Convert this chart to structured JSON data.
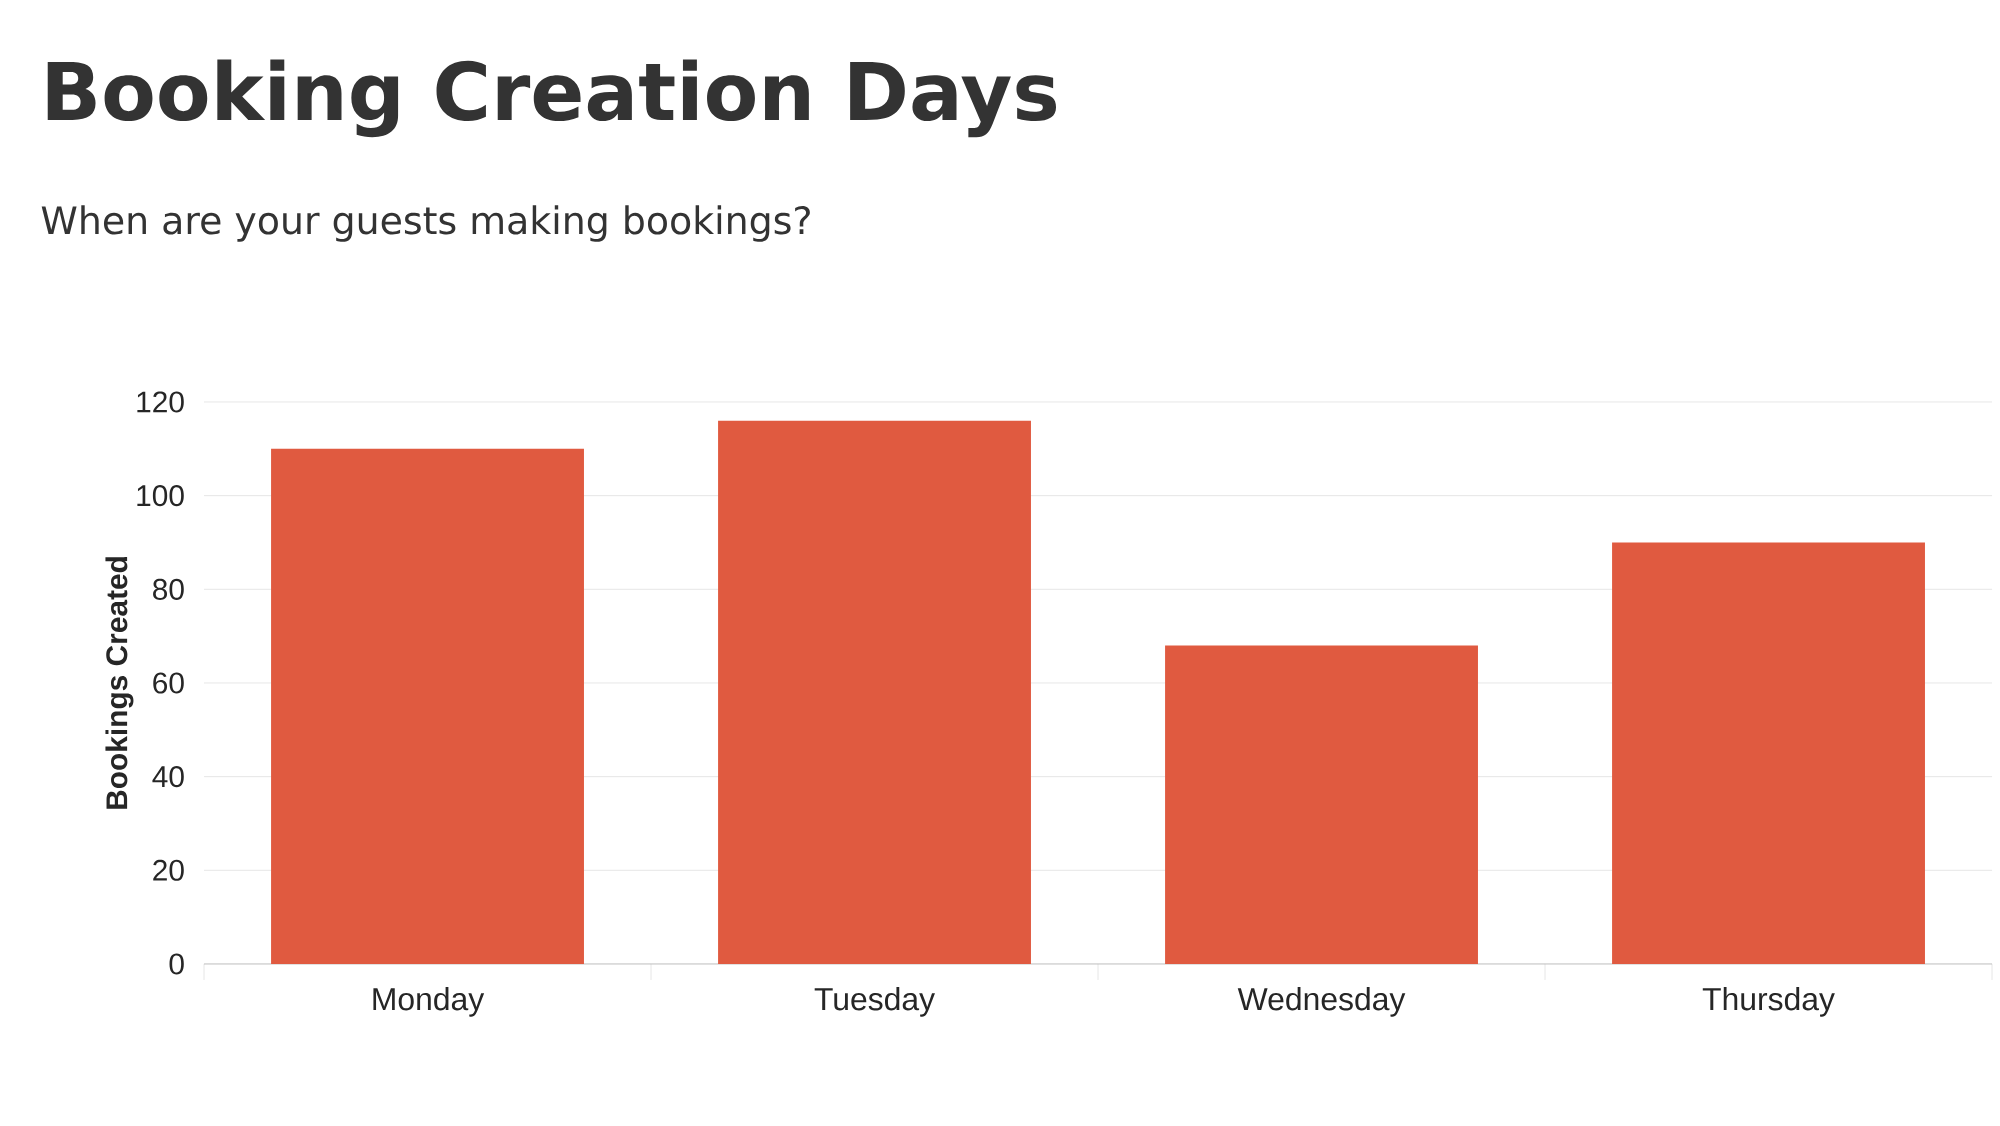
{
  "chart_data": {
    "type": "bar",
    "title": "Booking Creation Days",
    "subtitle": "When are your guests making bookings?",
    "ylabel": "Bookings Created",
    "categories": [
      "Monday",
      "Tuesday",
      "Wednesday",
      "Thursday"
    ],
    "values": [
      110,
      116,
      68,
      90
    ],
    "color": "#e05a40",
    "ylim": [
      0,
      120
    ],
    "yticks": [
      0,
      20,
      40,
      60,
      80,
      100,
      120
    ],
    "grid": "y"
  }
}
